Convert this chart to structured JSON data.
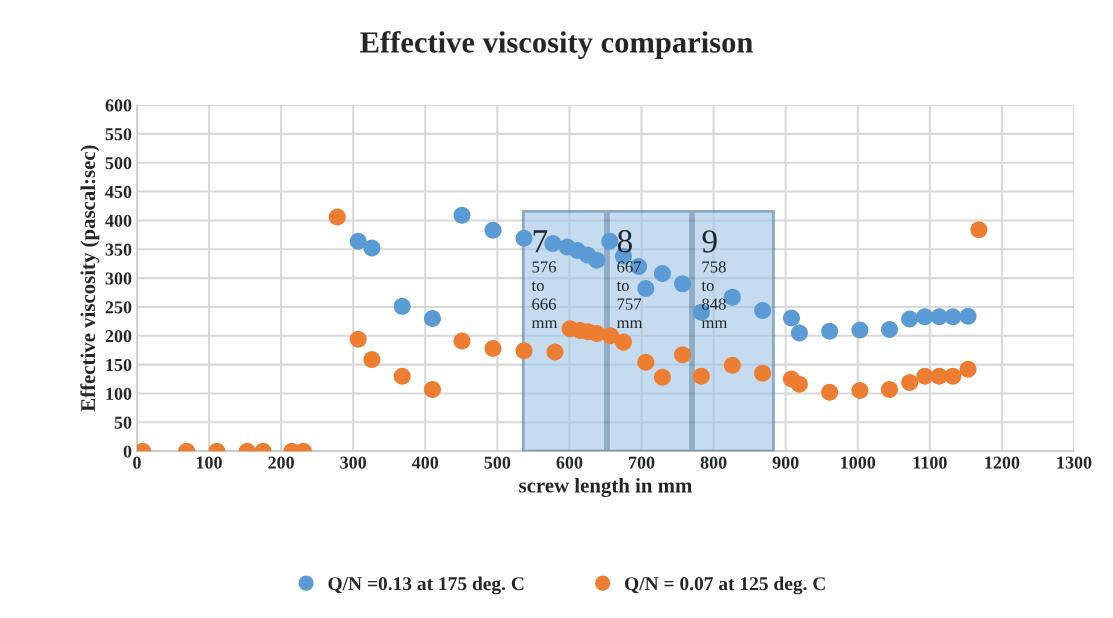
{
  "chart_data": {
    "type": "scatter",
    "title": "Effective viscosity comparison",
    "xlabel": "screw length in mm",
    "ylabel": "Effective viscosity (pascal:sec)",
    "xlim": [
      0,
      1300
    ],
    "xticks": [
      0,
      100,
      200,
      300,
      400,
      500,
      600,
      700,
      800,
      900,
      1000,
      1100,
      1200,
      1300
    ],
    "ylim": [
      0,
      600
    ],
    "yticks": [
      0,
      50,
      100,
      150,
      200,
      250,
      300,
      350,
      400,
      450,
      500,
      550,
      600
    ],
    "grid": true,
    "legend": "bottom",
    "marker": "circle",
    "series": [
      {
        "name": "Q/N =0.13 at 175 deg. C",
        "color": "#5b9bd5",
        "x": [
          307,
          326,
          368,
          410,
          451,
          494,
          537,
          577,
          597,
          611,
          625,
          638,
          656,
          675,
          696,
          706,
          729,
          757,
          783,
          826,
          868,
          908,
          919,
          961,
          1003,
          1044,
          1072,
          1093,
          1113,
          1132,
          1153
        ],
        "values": [
          364,
          352,
          251,
          230,
          409,
          383,
          369,
          360,
          354,
          348,
          340,
          331,
          364,
          338,
          320,
          282,
          308,
          290,
          241,
          267,
          244,
          231,
          205,
          208,
          210,
          211,
          229,
          233,
          233,
          233,
          234
        ]
      },
      {
        "name": "Q/N = 0.07 at 125 deg. C",
        "color": "#ed7d31",
        "x": [
          8,
          69,
          111,
          153,
          175,
          215,
          231,
          278,
          307,
          326,
          368,
          410,
          451,
          494,
          537,
          580,
          601,
          615,
          626,
          638,
          657,
          675,
          706,
          729,
          757,
          783,
          826,
          868,
          908,
          919,
          961,
          1003,
          1044,
          1072,
          1093,
          1113,
          1132,
          1153,
          1168
        ],
        "values": [
          0,
          0,
          0,
          0,
          0,
          0,
          0,
          406,
          194,
          159,
          130,
          107,
          191,
          178,
          174,
          172,
          212,
          209,
          207,
          204,
          200,
          189,
          154,
          128,
          167,
          130,
          149,
          135,
          125,
          116,
          102,
          105,
          107,
          119,
          130,
          130,
          130,
          142,
          384
        ]
      }
    ],
    "bands": [
      {
        "axis": "x",
        "from": 536,
        "to": 650,
        "label": "7\n\n576\nto\n666\nmm",
        "color": "#9dc3e6"
      },
      {
        "axis": "x",
        "from": 654,
        "to": 768,
        "label": "8\n\n667\nto\n757\nmm",
        "color": "#9dc3e6"
      },
      {
        "axis": "x",
        "from": 772,
        "to": 883,
        "label": "9\n\n758\nto\n848\nmm",
        "color": "#9dc3e6"
      }
    ]
  }
}
